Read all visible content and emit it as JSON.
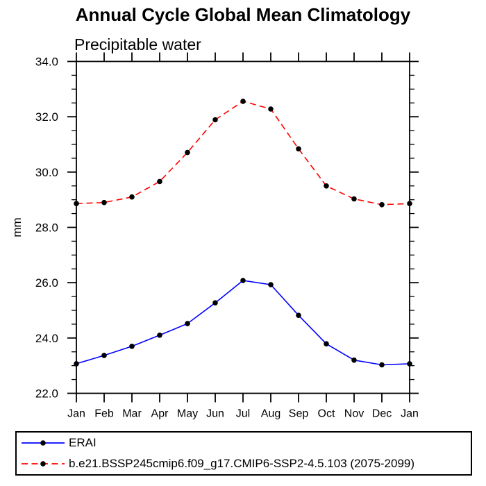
{
  "title": "Annual Cycle Global Mean Climatology",
  "subtitle": "Precipitable water",
  "chart_data": {
    "type": "line",
    "title": "Annual Cycle Global Mean Climatology",
    "subtitle": "Precipitable water",
    "xlabel": "",
    "ylabel": "mm",
    "categories": [
      "Jan",
      "Feb",
      "Mar",
      "Apr",
      "May",
      "Jun",
      "Jul",
      "Aug",
      "Sep",
      "Oct",
      "Nov",
      "Dec",
      "Jan"
    ],
    "ylim": [
      22.0,
      34.0
    ],
    "ytick_major_interval": 2.0,
    "ytick_minor_interval": 0.5,
    "ytick_labels": [
      "22.0",
      "24.0",
      "26.0",
      "28.0",
      "30.0",
      "32.0",
      "34.0"
    ],
    "grid": false,
    "legend_position": "bottom",
    "frame": "box-with-outward-ticks",
    "series": [
      {
        "name": "ERAI",
        "color": "#0000ff",
        "line_style": "solid",
        "marker": "circle",
        "marker_color": "#000000",
        "values": [
          23.07,
          23.37,
          23.7,
          24.1,
          24.52,
          25.27,
          26.08,
          25.93,
          24.82,
          23.79,
          23.2,
          23.03,
          23.07
        ]
      },
      {
        "name": "b.e21.BSSP245cmip6.f09_g17.CMIP6-SSP2-4.5.103 (2075-2099)",
        "color": "#ff0000",
        "line_style": "dashed",
        "marker": "circle",
        "marker_color": "#000000",
        "values": [
          28.86,
          28.9,
          29.1,
          29.66,
          30.71,
          31.89,
          32.56,
          32.28,
          30.84,
          29.5,
          29.03,
          28.82,
          28.86
        ]
      }
    ]
  }
}
